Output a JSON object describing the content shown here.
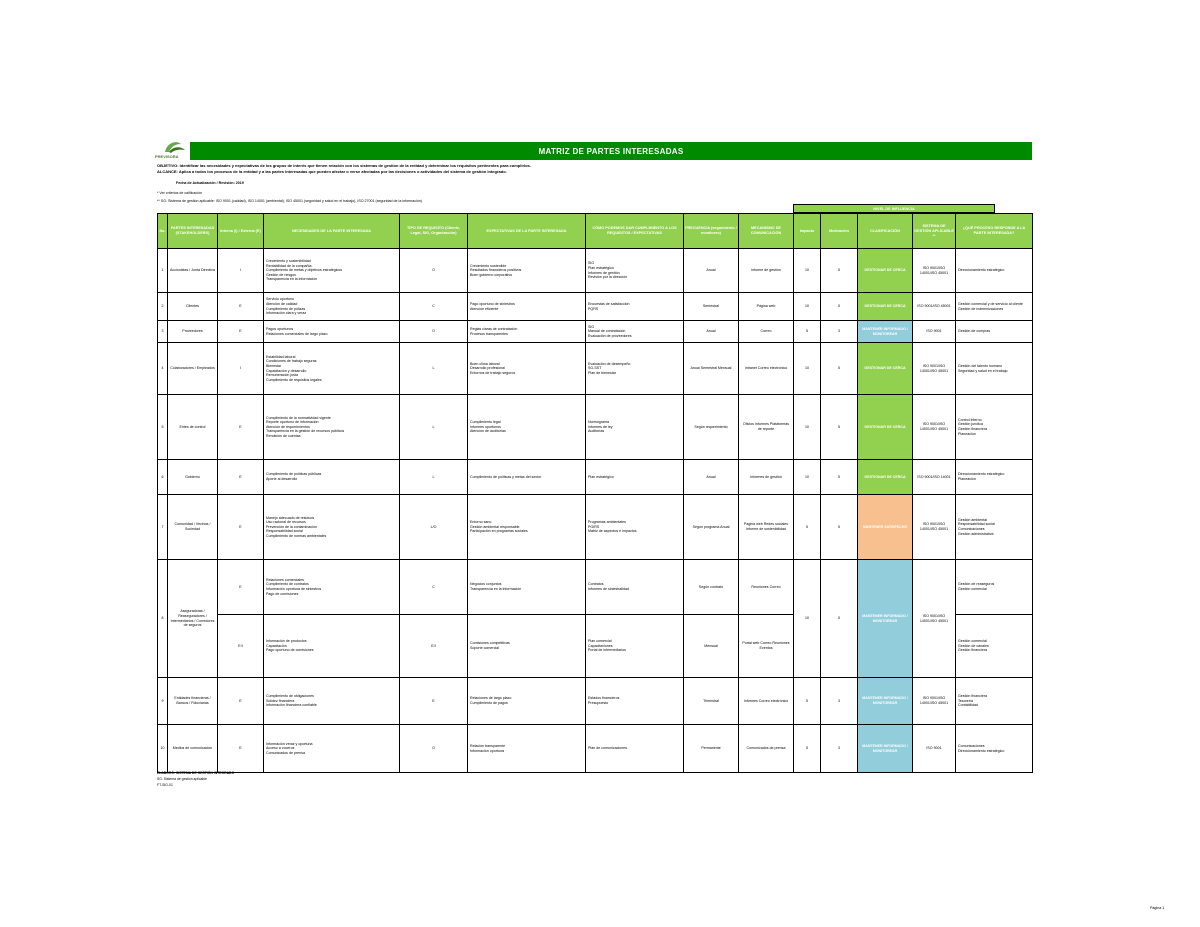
{
  "brand": {
    "logo_text": "PREVISORA",
    "accent": "#008a00",
    "header_green": "#92d050"
  },
  "title": "MATRIZ DE PARTES INTERESADAS",
  "intro": [
    "OBJETIVO: Identificar las necesidades y expectativas de los grupos de interés que tienen relación con los sistemas de gestión de la entidad y determinar los requisitos pertinentes para cumplirlos.",
    "ALCANCE: Aplica a todos los procesos de la entidad y a las partes interesadas que pueden afectar o verse afectadas por las decisiones o actividades del sistema de gestión integrado."
  ],
  "date_line": "Fecha de Actualización / Revisión: 2019",
  "notes": [
    "* Ver criterios de calificación",
    "** SG: Sistema de gestión aplicable: ISO 9001 (calidad), ISO 14001 (ambiental), ISO 45001 (seguridad y salud en el trabajo), ISO 27001 (seguridad de la información)"
  ],
  "group_header": "NIVEL DE INFLUENCIA",
  "headers": [
    "No.",
    "PARTES INTERESADAS (STAKEHOLDERS)",
    "Interna (I) / Externa (E)",
    "NECESIDADES DE LA PARTE INTERESADA",
    "TIPO DE REQUISITO (Cliente, Legal, SIG, Organización)",
    "EXPECTATIVAS DE LA PARTE INTERESADA",
    "CÓMO PODEMOS DAR CUMPLIMIENTO A LOS REQUISITOS / EXPECTATIVAS",
    "FRECUENCIA (seguimiento / monitoreo)",
    "MECANISMO DE COMUNICACIÓN",
    "Impacto",
    "Motivación",
    "CLASIFICACIÓN",
    "SISTEMA DE GESTIÓN APLICABLE **",
    "¿QUÉ PROCESO RESPONDE A LA PARTE INTERESADA?"
  ],
  "classification_colors": {
    "GESTIONAR DE CERCA": "#92d050",
    "MANTENER SATISFECHO": "#f8c08f",
    "MANTENER INFORMADO / MONITOREAR": "#92cddc"
  },
  "rows": [
    {
      "no": "1",
      "party": "Accionistas / Junta Directiva",
      "ie": "I",
      "needs": "Crecimiento y sostenibilidad\nRentabilidad de la compañía\nCumplimiento de metas y objetivos estratégicos\nGestión de riesgos\nTransparencia en la información",
      "type": "O",
      "expect": "Crecimiento sostenible\nResultados financieros positivos\nBuen gobierno corporativo",
      "how": "SIG\nPlan estratégico\nInformes de gestión\nRevisión por la dirección",
      "freq": "Anual",
      "mech": "Informe de gestión",
      "imp": "10",
      "mot": "5",
      "cls": "GESTIONAR DE CERCA",
      "cc": "cg",
      "sg": "ISO 9001/ISO 14001/ISO 45001",
      "proc": "Direccionamiento estratégico"
    },
    {
      "no": "2",
      "party": "Clientes",
      "ie": "E",
      "needs": "Servicio oportuno\nAtención de calidad\nCumplimiento de pólizas\nInformación clara y veraz",
      "type": "C",
      "expect": "Pago oportuno de siniestros\nAtención eficiente",
      "how": "Encuestas de satisfacción\nPQRS",
      "freq": "Semestral",
      "mech": "Página web",
      "imp": "10",
      "mot": "5",
      "cls": "GESTIONAR DE CERCA",
      "cc": "cg",
      "sg": "ISO 9001/ISO 45001",
      "proc": "Gestión comercial y de servicio al cliente\nGestión de indemnizaciones"
    },
    {
      "no": "3",
      "party": "Proveedores",
      "ie": "E",
      "needs": "Pagos oportunos\nRelaciones comerciales de largo plazo",
      "type": "O",
      "expect": "Reglas claras de contratación\nProcesos transparentes",
      "how": "SIG\nManual de contratación\nEvaluación de proveedores",
      "freq": "Anual",
      "mech": "Correo",
      "imp": "5",
      "mot": "3",
      "cls": "MANTENER INFORMADO / MONITOREAR",
      "cc": "cb",
      "sg": "ISO 9001",
      "proc": "Gestión de compras"
    },
    {
      "no": "4",
      "party": "Colaboradores / Empleados",
      "ie": "I",
      "needs": "Estabilidad laboral\nCondiciones de trabajo seguras\nBienestar\nCapacitación y desarrollo\nRemuneración justa\nCumplimiento de requisitos legales",
      "type": "L",
      "expect": "Buen clima laboral\nDesarrollo profesional\nEntornos de trabajo seguros",
      "how": "Evaluación de desempeño\nSG-SST\nPlan de bienestar",
      "freq": "Anual\nSemestral\nMensual",
      "mech": "Intranet\nCorreo electrónico",
      "imp": "10",
      "mot": "5",
      "cls": "GESTIONAR DE CERCA",
      "cc": "cg",
      "sg": "ISO 9001/ISO 14001/ISO 45001",
      "proc": "Gestión del talento humano\nSeguridad y salud en el trabajo"
    },
    {
      "no": "5",
      "party": "Entes de control",
      "ie": "E",
      "needs": "Cumplimiento de la normatividad vigente\nReporte oportuno de información\nAtención de requerimientos\nTransparencia en la gestión de recursos públicos\nRendición de cuentas",
      "type": "L",
      "expect": "Cumplimiento legal\nInformes oportunos\nAtención de auditorías",
      "how": "Normograma\nInformes de ley\nAuditorías",
      "freq": "Según requerimiento",
      "mech": "Oficios\nInformes\nPlataformas de reporte",
      "imp": "10",
      "mot": "5",
      "cls": "GESTIONAR DE CERCA",
      "cc": "cg",
      "sg": "ISO 9001/ISO 14001/ISO 45001",
      "proc": "Control interno\nGestión jurídica\nGestión financiera\nPlaneación"
    },
    {
      "no": "6",
      "party": "Gobierno",
      "ie": "E",
      "needs": "Cumplimiento de políticas públicas\nAporte al desarrollo",
      "type": "L",
      "expect": "Cumplimiento de políticas y metas del sector",
      "how": "Plan estratégico",
      "freq": "Anual",
      "mech": "Informes de gestión",
      "imp": "10",
      "mot": "5",
      "cls": "GESTIONAR DE CERCA",
      "cc": "cg",
      "sg": "ISO 9001/ISO 14001",
      "proc": "Direccionamiento estratégico\nPlaneación"
    },
    {
      "no": "7",
      "party": "Comunidad / Vecinos / Sociedad",
      "ie": "E",
      "needs": "Manejo adecuado de residuos\nUso racional de recursos\nPrevención de la contaminación\nResponsabilidad social\nCumplimiento de normas ambientales",
      "type": "L/O",
      "expect": "Entorno sano\nGestión ambiental responsable\nParticipación en programas sociales",
      "how": "Programas ambientales\nPGIRS\nMatriz de aspectos e impactos",
      "freq": "Según programa\nAnual",
      "mech": "Página web\nRedes sociales\nInforme de sostenibilidad",
      "imp": "5",
      "mot": "5",
      "cls": "MANTENER SATISFECHO",
      "cc": "co",
      "sg": "ISO 9001/ISO 14001/ISO 45001",
      "proc": "Gestión ambiental\nResponsabilidad social\nComunicaciones\nGestión administrativa"
    },
    {
      "no": "8",
      "party": "Aseguradoras / Reaseguradores / Intermediarios / Corredores de seguros",
      "imp": "10",
      "mot": "5",
      "cls": "MANTENER INFORMADO / MONITOREAR",
      "cc": "cb",
      "sg": "ISO 9001/ISO 14001/ISO 45001",
      "sub": [
        {
          "ie": "E",
          "needs": "Relaciones comerciales\nCumplimiento de contratos\nInformación oportuna de siniestros\nPago de comisiones",
          "type": "C",
          "expect": "Negocios conjuntos\nTransparencia en la información",
          "how": "Contratos\nInformes de siniestralidad",
          "freq": "Según contrato",
          "mech": "Reuniones\nCorreo",
          "proc": "Gestión de reaseguros\nGestión comercial"
        },
        {
          "ie": "E/I",
          "needs": "Información de productos\nCapacitación\nPago oportuno de comisiones",
          "type": "E/I",
          "expect": "Comisiones competitivas\nSoporte comercial",
          "how": "Plan comercial\nCapacitaciones\nPortal de intermediarios",
          "freq": "Mensual",
          "mech": "Portal web\nCorreo\nReuniones\nEventos",
          "proc": "Gestión comercial\nGestión de canales\nGestión financiera"
        }
      ]
    },
    {
      "no": "9",
      "party": "Entidades financieras / Bancos / Fiduciarias",
      "ie": "E",
      "needs": "Cumplimiento de obligaciones\nSolidez financiera\nInformación financiera confiable",
      "type": "E",
      "expect": "Relaciones de largo plazo\nCumplimiento de pagos",
      "how": "Estados financieros\nPresupuesto",
      "freq": "Trimestral",
      "mech": "Informes\nCorreo electrónico",
      "imp": "5",
      "mot": "3",
      "cls": "MANTENER INFORMADO / MONITOREAR",
      "cc": "cb",
      "sg": "ISO 9001/ISO 14001/ISO 45001",
      "proc": "Gestión financiera\nTesorería\nContabilidad"
    },
    {
      "no": "10",
      "party": "Medios de comunicación",
      "ie": "E",
      "needs": "Información veraz y oportuna\nAcceso a voceros\nComunicados de prensa",
      "type": "O",
      "expect": "Relación transparente\nInformación oportuna",
      "how": "Plan de comunicaciones",
      "freq": "Permanente",
      "mech": "Comunicados de prensa",
      "imp": "5",
      "mot": "3",
      "cls": "MANTENER INFORMADO / MONITOREAR",
      "cc": "cb",
      "sg": "ISO 9001",
      "proc": "Comunicaciones\nDireccionamiento estratégico"
    }
  ],
  "footer": [
    "ELABORÓ: SISTEMA DE GESTIÓN INTEGRADO",
    "SG: Sistema de gestión aplicable",
    "FT-SIG-01"
  ],
  "page_number": "Página 1"
}
